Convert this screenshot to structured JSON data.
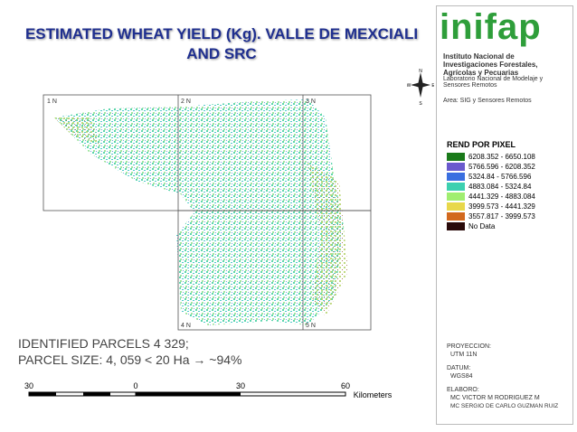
{
  "header": {
    "title_line1": "ESTIMATED WHEAT YIELD (Kg). VALLE DE MEXCIALI",
    "title_line2": "AND SRC"
  },
  "logo": {
    "name": "inifap",
    "org": "Instituto Nacional de Investigaciones Forestales, Agrícolas y Pecuarias",
    "lab": "Laboratorio Nacional de Modelaje y Sensores Remotos",
    "area": "Area: SIG y Sensores Remotos"
  },
  "compass": [
    "N",
    "E",
    "S",
    "W"
  ],
  "grid_labels": [
    "1 N",
    "2 N",
    "3 N",
    "4 N",
    "5 N"
  ],
  "legend": {
    "title": "REND POR PIXEL",
    "items": [
      "6208.352 - 6650.108",
      "5766.596 - 6208.352",
      "5324.84 - 5766.596",
      "4883.084 - 5324.84",
      "4441.329 - 4883.084",
      "3999.573 - 4441.329",
      "3557.817 - 3999.573",
      "No Data"
    ]
  },
  "notes": [
    "IDENTIFIED PARCELS 4 329;",
    "PARCEL SIZE: 4, 059 < 20 Ha → ~94%"
  ],
  "scale": {
    "labels": [
      "30",
      "0",
      "30",
      "60"
    ],
    "unit": "Kilometers"
  },
  "info": {
    "proj_title": "PROYECCION:",
    "proj": "UTM 11N",
    "datum_title": "DATUM:",
    "datum": "WGS84",
    "author_title": "ELABORO:",
    "author1": "MC VICTOR M RODRIGUEZ M",
    "author2": "MC SERGIO DE CARLO GUZMAN RUIZ"
  }
}
